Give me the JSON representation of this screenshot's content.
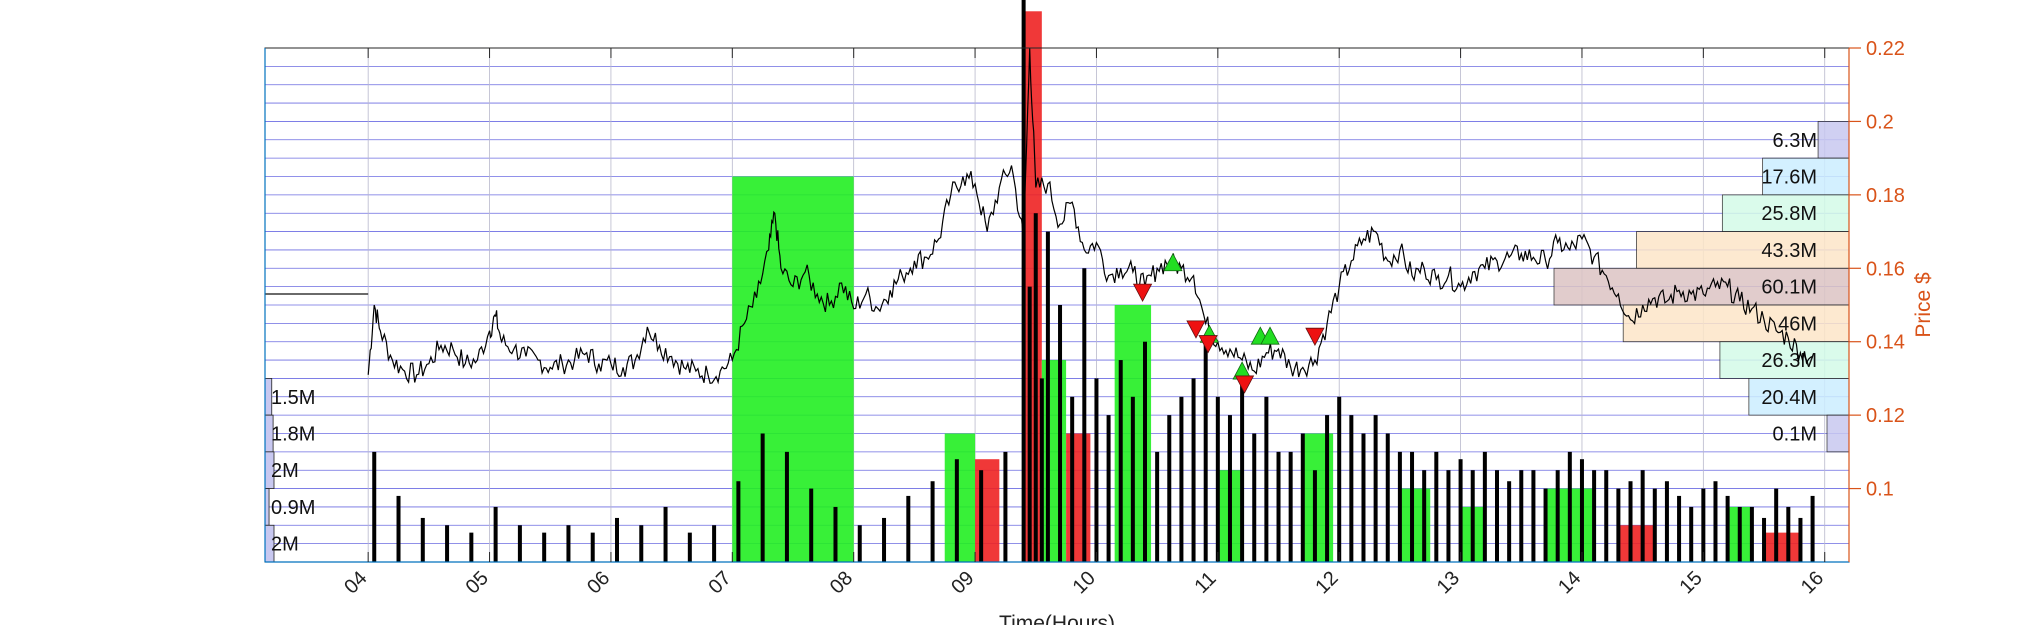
{
  "chart_data": {
    "type": "line",
    "xlabel": "Time(Hours)",
    "ylabel": "Price $",
    "x_tick_labels": [
      "04",
      "05",
      "06",
      "07",
      "08",
      "09",
      "10",
      "11",
      "12",
      "13",
      "14",
      "15",
      "16"
    ],
    "x_tick_hours": [
      4,
      5,
      6,
      7,
      8,
      9,
      10,
      11,
      12,
      13,
      14,
      15,
      16
    ],
    "xlim": [
      3.15,
      16.2
    ],
    "ylim": [
      0.08,
      0.22
    ],
    "y_ticks": [
      0.1,
      0.12,
      0.14,
      0.16,
      0.18,
      0.2,
      0.22
    ],
    "y_tick_labels": [
      "0.1",
      "0.12",
      "0.14",
      "0.16",
      "0.18",
      "0.2",
      "0.22"
    ],
    "grid": true,
    "price_series": {
      "name": "",
      "x": [
        4.0,
        4.05,
        4.1,
        4.2,
        4.3,
        4.4,
        4.5,
        4.6,
        4.7,
        4.8,
        4.9,
        5.0,
        5.05,
        5.1,
        5.2,
        5.3,
        5.4,
        5.5,
        5.6,
        5.7,
        5.8,
        5.9,
        6.0,
        6.1,
        6.2,
        6.3,
        6.4,
        6.5,
        6.6,
        6.7,
        6.8,
        6.9,
        7.0,
        7.1,
        7.2,
        7.3,
        7.35,
        7.4,
        7.5,
        7.6,
        7.7,
        7.8,
        7.9,
        8.0,
        8.1,
        8.2,
        8.3,
        8.4,
        8.5,
        8.6,
        8.7,
        8.8,
        8.9,
        9.0,
        9.1,
        9.2,
        9.3,
        9.4,
        9.45,
        9.5,
        9.6,
        9.7,
        9.8,
        9.9,
        10.0,
        10.1,
        10.2,
        10.3,
        10.4,
        10.5,
        10.6,
        10.7,
        10.8,
        10.9,
        11.0,
        11.1,
        11.2,
        11.3,
        11.4,
        11.5,
        11.6,
        11.7,
        11.8,
        11.9,
        12.0,
        12.1,
        12.2,
        12.3,
        12.4,
        12.5,
        12.6,
        12.7,
        12.8,
        12.9,
        13.0,
        13.1,
        13.2,
        13.3,
        13.4,
        13.5,
        13.6,
        13.7,
        13.8,
        13.9,
        14.0,
        14.1,
        14.2,
        14.3,
        14.4,
        14.5,
        14.6,
        14.7,
        14.8,
        14.9,
        15.0,
        15.1,
        15.2,
        15.3,
        15.4,
        15.5,
        15.6,
        15.7,
        15.8,
        15.9
      ],
      "y": [
        0.131,
        0.15,
        0.143,
        0.135,
        0.132,
        0.131,
        0.134,
        0.139,
        0.138,
        0.134,
        0.135,
        0.143,
        0.147,
        0.14,
        0.138,
        0.136,
        0.135,
        0.133,
        0.134,
        0.135,
        0.137,
        0.134,
        0.134,
        0.133,
        0.135,
        0.144,
        0.139,
        0.136,
        0.133,
        0.132,
        0.131,
        0.132,
        0.135,
        0.145,
        0.152,
        0.165,
        0.175,
        0.16,
        0.155,
        0.159,
        0.153,
        0.15,
        0.156,
        0.149,
        0.153,
        0.149,
        0.154,
        0.158,
        0.162,
        0.163,
        0.168,
        0.18,
        0.185,
        0.183,
        0.17,
        0.182,
        0.188,
        0.168,
        0.22,
        0.182,
        0.183,
        0.172,
        0.178,
        0.165,
        0.167,
        0.158,
        0.16,
        0.159,
        0.155,
        0.16,
        0.162,
        0.16,
        0.158,
        0.145,
        0.14,
        0.138,
        0.135,
        0.132,
        0.137,
        0.138,
        0.133,
        0.133,
        0.135,
        0.145,
        0.155,
        0.162,
        0.168,
        0.17,
        0.162,
        0.165,
        0.158,
        0.16,
        0.157,
        0.158,
        0.155,
        0.159,
        0.16,
        0.162,
        0.163,
        0.164,
        0.163,
        0.162,
        0.167,
        0.165,
        0.168,
        0.163,
        0.158,
        0.153,
        0.146,
        0.15,
        0.152,
        0.151,
        0.154,
        0.153,
        0.153,
        0.155,
        0.155,
        0.151,
        0.149,
        0.146,
        0.143,
        0.141,
        0.137,
        0.136
      ]
    },
    "buy_markers": {
      "x": [
        10.63,
        10.93,
        11.2,
        11.35,
        11.43
      ],
      "y": [
        0.1615,
        0.142,
        0.132,
        0.1415,
        0.1415
      ]
    },
    "sell_markers": {
      "x": [
        10.38,
        10.82,
        10.92,
        11.22,
        11.8
      ],
      "y": [
        0.1535,
        0.1435,
        0.1395,
        0.1285,
        0.1415
      ]
    },
    "volume_bars": {
      "x": [
        4.05,
        4.25,
        4.45,
        4.65,
        4.85,
        5.05,
        5.25,
        5.45,
        5.65,
        5.85,
        6.05,
        6.25,
        6.45,
        6.65,
        6.85,
        7.05,
        7.25,
        7.45,
        7.65,
        7.85,
        8.05,
        8.25,
        8.45,
        8.65,
        8.85,
        9.05,
        9.25,
        9.4,
        9.45,
        9.5,
        9.55,
        9.6,
        9.7,
        9.8,
        9.9,
        10.0,
        10.1,
        10.2,
        10.3,
        10.4,
        10.5,
        10.6,
        10.7,
        10.8,
        10.9,
        11.0,
        11.1,
        11.2,
        11.3,
        11.4,
        11.5,
        11.6,
        11.7,
        11.8,
        11.9,
        12.0,
        12.1,
        12.2,
        12.3,
        12.4,
        12.5,
        12.6,
        12.7,
        12.8,
        12.9,
        13.0,
        13.1,
        13.2,
        13.3,
        13.4,
        13.5,
        13.6,
        13.7,
        13.8,
        13.9,
        14.0,
        14.1,
        14.2,
        14.3,
        14.4,
        14.5,
        14.6,
        14.7,
        14.8,
        14.9,
        15.0,
        15.1,
        15.2,
        15.3,
        15.4,
        15.5,
        15.6,
        15.7,
        15.8,
        15.9
      ],
      "values": [
        0.03,
        0.018,
        0.012,
        0.01,
        0.008,
        0.015,
        0.01,
        0.008,
        0.01,
        0.008,
        0.012,
        0.01,
        0.015,
        0.008,
        0.01,
        0.022,
        0.035,
        0.03,
        0.02,
        0.015,
        0.01,
        0.012,
        0.018,
        0.022,
        0.028,
        0.025,
        0.03,
        0.16,
        0.075,
        0.095,
        0.05,
        0.09,
        0.07,
        0.045,
        0.08,
        0.05,
        0.04,
        0.055,
        0.045,
        0.06,
        0.03,
        0.04,
        0.045,
        0.05,
        0.06,
        0.045,
        0.04,
        0.05,
        0.035,
        0.045,
        0.03,
        0.03,
        0.035,
        0.025,
        0.04,
        0.045,
        0.04,
        0.035,
        0.04,
        0.035,
        0.03,
        0.03,
        0.025,
        0.03,
        0.025,
        0.028,
        0.025,
        0.03,
        0.025,
        0.022,
        0.025,
        0.025,
        0.02,
        0.025,
        0.03,
        0.028,
        0.025,
        0.025,
        0.02,
        0.022,
        0.025,
        0.02,
        0.022,
        0.018,
        0.015,
        0.02,
        0.022,
        0.018,
        0.015,
        0.015,
        0.012,
        0.02,
        0.015,
        0.012,
        0.018
      ]
    },
    "volume_band_fills": [
      {
        "x0": 7.0,
        "x1": 8.0,
        "value": 0.105,
        "color": "#22ee22"
      },
      {
        "x0": 8.75,
        "x1": 9.0,
        "value": 0.035,
        "color": "#22ee22"
      },
      {
        "x0": 9.0,
        "x1": 9.2,
        "value": 0.028,
        "color": "#ee2222"
      },
      {
        "x0": 9.4,
        "x1": 9.55,
        "value": 0.15,
        "color": "#ee2222"
      },
      {
        "x0": 9.55,
        "x1": 9.75,
        "value": 0.055,
        "color": "#22ee22"
      },
      {
        "x0": 9.75,
        "x1": 9.95,
        "value": 0.035,
        "color": "#ee2222"
      },
      {
        "x0": 10.15,
        "x1": 10.45,
        "value": 0.07,
        "color": "#22ee22"
      },
      {
        "x0": 11.0,
        "x1": 11.2,
        "value": 0.025,
        "color": "#22ee22"
      },
      {
        "x0": 11.7,
        "x1": 11.95,
        "value": 0.035,
        "color": "#22ee22"
      },
      {
        "x0": 12.5,
        "x1": 12.75,
        "value": 0.02,
        "color": "#22ee22"
      },
      {
        "x0": 13.0,
        "x1": 13.2,
        "value": 0.015,
        "color": "#22ee22"
      },
      {
        "x0": 13.7,
        "x1": 14.1,
        "value": 0.02,
        "color": "#22ee22"
      },
      {
        "x0": 14.3,
        "x1": 14.6,
        "value": 0.01,
        "color": "#ee2222"
      },
      {
        "x0": 15.2,
        "x1": 15.4,
        "value": 0.015,
        "color": "#22ee22"
      },
      {
        "x0": 15.5,
        "x1": 15.8,
        "value": 0.008,
        "color": "#ee2222"
      }
    ],
    "volume_profile_right": [
      {
        "label": "6.3M",
        "price_low": 0.19,
        "price_high": 0.2,
        "volume_millions": 6.3,
        "color": "#c8c8f0"
      },
      {
        "label": "17.6M",
        "price_low": 0.18,
        "price_high": 0.19,
        "volume_millions": 17.6,
        "color": "#cceeff"
      },
      {
        "label": "25.8M",
        "price_low": 0.17,
        "price_high": 0.18,
        "volume_millions": 25.8,
        "color": "#d4fbe8"
      },
      {
        "label": "43.3M",
        "price_low": 0.16,
        "price_high": 0.17,
        "volume_millions": 43.3,
        "color": "#fde6c8"
      },
      {
        "label": "60.1M",
        "price_low": 0.15,
        "price_high": 0.16,
        "volume_millions": 60.1,
        "color": "#dcc4c4"
      },
      {
        "label": "46M",
        "price_low": 0.14,
        "price_high": 0.15,
        "volume_millions": 46,
        "color": "#fde6c8"
      },
      {
        "label": "26.3M",
        "price_low": 0.13,
        "price_high": 0.14,
        "volume_millions": 26.3,
        "color": "#d4fbe8"
      },
      {
        "label": "20.4M",
        "price_low": 0.12,
        "price_high": 0.13,
        "volume_millions": 20.4,
        "color": "#cceeff"
      },
      {
        "label": "0.1M",
        "price_low": 0.11,
        "price_high": 0.12,
        "volume_millions": 0.1,
        "color": "#c8c8f0"
      }
    ],
    "volume_profile_left": [
      {
        "label": "1.5M",
        "price_low": 0.12,
        "price_high": 0.13,
        "volume_millions": 1.5
      },
      {
        "label": "1.8M",
        "price_low": 0.11,
        "price_high": 0.12,
        "volume_millions": 1.8
      },
      {
        "label": "2M",
        "price_low": 0.1,
        "price_high": 0.11,
        "volume_millions": 2
      },
      {
        "label": "0.9M",
        "price_low": 0.09,
        "price_high": 0.1,
        "volume_millions": 0.9
      },
      {
        "label": "2M",
        "price_low": 0.08,
        "price_high": 0.09,
        "volume_millions": 2
      }
    ],
    "reference_line": {
      "x0": 3.15,
      "x1": 4.0,
      "y": 0.153
    },
    "colors": {
      "price_line": "#000000",
      "price_axis": "#d95319",
      "buy_marker": "#22dd22",
      "sell_marker": "#ee1111",
      "grid": "#3b3bd8",
      "volume_bar": "#000000",
      "left_profile": "#c8c8f0"
    }
  }
}
